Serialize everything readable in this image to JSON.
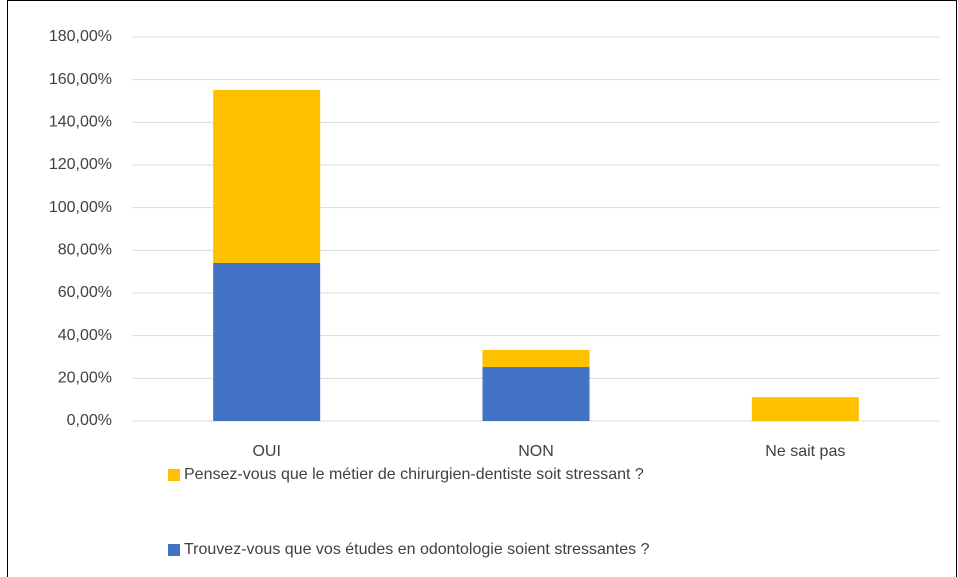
{
  "chart_data": {
    "type": "stacked_bar",
    "categories": [
      "OUI",
      "NON",
      "Ne sait pas"
    ],
    "series": [
      {
        "name": "Trouvez-vous que vos études en odontologie soient stressantes ?",
        "color": "#4472c4",
        "values": [
          74.1,
          25.3,
          0
        ]
      },
      {
        "name": "Pensez-vous que le métier de chirurgien-dentiste soit stressant ?",
        "color": "#ffc000",
        "values": [
          81.1,
          8,
          11.2
        ]
      }
    ],
    "ylim": [
      0,
      180
    ],
    "yticks": [
      {
        "value": 0,
        "label": "0,00%"
      },
      {
        "value": 20,
        "label": "20,00%"
      },
      {
        "value": 40,
        "label": "40,00%"
      },
      {
        "value": 60,
        "label": "60,00%"
      },
      {
        "value": 80,
        "label": "80,00%"
      },
      {
        "value": 100,
        "label": "100,00%"
      },
      {
        "value": 120,
        "label": "120,00%"
      },
      {
        "value": 140,
        "label": "140,00%"
      },
      {
        "value": 160,
        "label": "160,00%"
      },
      {
        "value": 180,
        "label": "180,00%"
      }
    ],
    "grid": true,
    "legend": "bottom"
  }
}
